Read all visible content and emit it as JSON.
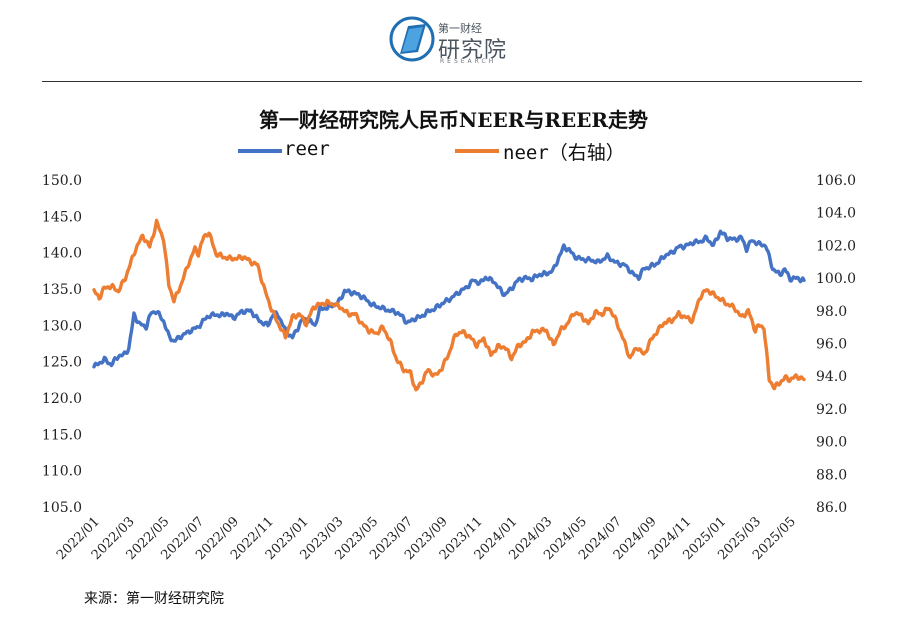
{
  "logo": {
    "small_text": "第一财经",
    "big_text": "研究院",
    "sub_text": "RESEARCH"
  },
  "source": "来源：第一财经研究院",
  "colors": {
    "reer": "#4472C4",
    "neer": "#ED7D31"
  },
  "chart_data": {
    "type": "line",
    "title": "第一财经研究院人民币NEER与REER走势",
    "legend": [
      "reer",
      "neer（右轴）"
    ],
    "legend_placement": "top-center",
    "grid": false,
    "xlabel": "",
    "ylabel": "",
    "x_ticks": [
      "2022/01",
      "2022/03",
      "2022/05",
      "2022/07",
      "2022/09",
      "2022/11",
      "2023/01",
      "2023/03",
      "2023/05",
      "2023/07",
      "2023/09",
      "2023/11",
      "2024/01",
      "2024/03",
      "2024/05",
      "2024/07",
      "2024/09",
      "2024/11",
      "2025/01",
      "2025/03",
      "2025/05"
    ],
    "y_left": {
      "range": [
        105,
        150
      ],
      "ticks": [
        "105.0",
        "110.0",
        "115.0",
        "120.0",
        "125.0",
        "130.0",
        "135.0",
        "140.0",
        "145.0",
        "150.0"
      ]
    },
    "y_right": {
      "range": [
        86,
        106
      ],
      "ticks": [
        "86.0",
        "88.0",
        "90.0",
        "92.0",
        "94.0",
        "96.0",
        "98.0",
        "100.0",
        "102.0",
        "104.0",
        "106.0"
      ]
    },
    "x_range": [
      0,
      40.8
    ],
    "series": [
      {
        "name": "reer",
        "axis": "left",
        "x": [
          0,
          0.3,
          0.6,
          1.0,
          1.4,
          1.7,
          2.0,
          2.3,
          2.6,
          3.0,
          3.3,
          3.6,
          4.0,
          4.3,
          4.6,
          5.0,
          5.5,
          6.0,
          6.5,
          7.0,
          7.3,
          7.6,
          8.0,
          8.5,
          9.0,
          9.5,
          10.0,
          10.3,
          10.6,
          11.0,
          11.4,
          11.7,
          12.0,
          12.4,
          12.7,
          13.0,
          13.4,
          13.7,
          14.0,
          14.4,
          14.7,
          15.0,
          15.3,
          15.6,
          16.0,
          16.5,
          17.0,
          17.4,
          17.8,
          18.0,
          18.4,
          18.8,
          19.2,
          19.6,
          20.0,
          20.5,
          21.0,
          21.4,
          21.8,
          22.2,
          22.5,
          23.0,
          23.3,
          23.6,
          24.0,
          24.4,
          24.8,
          25.2,
          25.6,
          26.0,
          26.4,
          26.7,
          27.0,
          27.3,
          27.6,
          28.0,
          28.5,
          29.0,
          29.5,
          30.0,
          30.5,
          31.0,
          31.3,
          31.6,
          32.0,
          32.4,
          32.8,
          33.2,
          33.6,
          34.0,
          34.4,
          34.8,
          35.2,
          35.6,
          36.0,
          36.4,
          36.8,
          37.2,
          37.5,
          37.8,
          38.2,
          38.6,
          39.0,
          39.4,
          39.7,
          40.0,
          40.4,
          40.8
        ],
        "values": [
          124.3,
          124.8,
          125.3,
          124.6,
          125.8,
          125.9,
          126.8,
          131.5,
          130.2,
          129.8,
          131.8,
          131.9,
          130.6,
          128.5,
          127.8,
          128.5,
          129.2,
          129.8,
          131.2,
          131.5,
          131.3,
          131.7,
          131.0,
          131.9,
          132.0,
          130.6,
          130.0,
          131.6,
          131.4,
          129.3,
          128.3,
          129.6,
          130.9,
          130.6,
          130.0,
          132.3,
          132.4,
          132.8,
          133.0,
          134.7,
          134.6,
          134.4,
          134.1,
          133.6,
          132.8,
          132.4,
          132.0,
          131.8,
          131.0,
          130.3,
          130.9,
          131.2,
          131.9,
          132.3,
          133.0,
          133.7,
          134.6,
          135.2,
          136.2,
          135.8,
          136.6,
          136.0,
          135.0,
          134.2,
          135.1,
          136.3,
          136.5,
          136.4,
          137.0,
          137.1,
          137.6,
          139.3,
          140.8,
          140.4,
          139.5,
          139.1,
          139.0,
          138.7,
          139.5,
          138.6,
          138.3,
          137.0,
          136.6,
          137.8,
          138.1,
          138.6,
          139.6,
          140.0,
          140.8,
          140.9,
          141.4,
          141.5,
          142.0,
          141.0,
          142.9,
          142.0,
          141.8,
          142.1,
          140.5,
          141.7,
          141.2,
          141.0,
          137.8,
          137.0,
          137.7,
          136.4,
          136.5,
          136.2
        ]
      },
      {
        "name": "neer",
        "axis": "right",
        "x": [
          0,
          0.3,
          0.6,
          1.0,
          1.4,
          1.8,
          2.0,
          2.4,
          2.8,
          3.2,
          3.6,
          4.0,
          4.3,
          4.6,
          5.0,
          5.4,
          5.8,
          6.0,
          6.3,
          6.6,
          7.0,
          7.4,
          7.8,
          8.2,
          8.6,
          9.0,
          9.4,
          9.8,
          10.2,
          10.6,
          11.0,
          11.4,
          11.8,
          12.2,
          12.6,
          13.0,
          13.4,
          13.8,
          14.2,
          14.6,
          15.0,
          15.4,
          15.8,
          16.2,
          16.6,
          17.0,
          17.4,
          17.8,
          18.2,
          18.5,
          18.8,
          19.2,
          19.6,
          20.0,
          20.4,
          20.8,
          21.2,
          21.6,
          22.0,
          22.4,
          22.8,
          23.2,
          23.6,
          24.0,
          24.4,
          24.8,
          25.2,
          25.6,
          26.0,
          26.4,
          26.8,
          27.2,
          27.6,
          28.0,
          28.4,
          28.8,
          29.2,
          29.6,
          30.0,
          30.4,
          30.8,
          31.2,
          31.6,
          32.0,
          32.4,
          32.8,
          33.2,
          33.6,
          34.0,
          34.4,
          34.8,
          35.2,
          35.6,
          36.0,
          36.4,
          36.8,
          37.2,
          37.6,
          38.0,
          38.2,
          38.5,
          38.8,
          39.1,
          39.4,
          39.7,
          40.0,
          40.4,
          40.8
        ],
        "values": [
          99.2,
          98.8,
          99.4,
          99.5,
          99.2,
          100.0,
          100.6,
          101.8,
          102.6,
          101.9,
          103.4,
          102.4,
          99.6,
          98.6,
          99.6,
          100.8,
          101.8,
          101.5,
          102.5,
          102.8,
          101.5,
          101.3,
          101.2,
          101.2,
          101.3,
          101.0,
          100.8,
          99.3,
          98.1,
          97.2,
          96.4,
          97.6,
          97.8,
          97.2,
          98.2,
          98.4,
          98.5,
          98.4,
          98.2,
          97.8,
          97.8,
          97.2,
          96.8,
          96.6,
          97.0,
          96.2,
          95.0,
          94.4,
          94.2,
          93.1,
          93.6,
          94.4,
          94.0,
          94.5,
          95.4,
          96.6,
          96.7,
          96.4,
          95.9,
          96.3,
          95.3,
          95.8,
          95.8,
          95.1,
          95.9,
          96.1,
          96.7,
          96.8,
          96.8,
          95.9,
          96.8,
          97.2,
          97.9,
          97.7,
          97.2,
          97.9,
          97.8,
          98.2,
          97.4,
          96.3,
          95.1,
          95.8,
          95.3,
          96.2,
          96.8,
          97.3,
          97.4,
          97.8,
          97.6,
          97.4,
          98.8,
          99.3,
          99.0,
          98.7,
          98.4,
          98.2,
          97.6,
          98.0,
          96.8,
          97.1,
          97.0,
          93.8,
          93.3,
          93.6,
          93.9,
          93.8,
          94.0,
          93.8
        ]
      }
    ]
  }
}
